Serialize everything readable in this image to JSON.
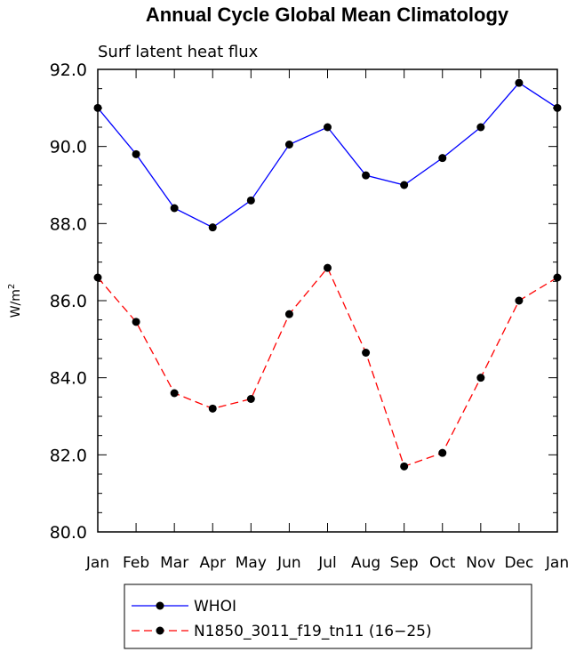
{
  "chart_data": {
    "type": "line",
    "title": "Annual Cycle Global Mean Climatology",
    "subtitle": "Surf latent heat flux",
    "xlabel": "",
    "ylabel": "W/m",
    "ylabel_superscript": "2",
    "categories": [
      "Jan",
      "Feb",
      "Mar",
      "Apr",
      "May",
      "Jun",
      "Jul",
      "Aug",
      "Sep",
      "Oct",
      "Nov",
      "Dec",
      "Jan"
    ],
    "ylim": [
      80.0,
      92.0
    ],
    "yticks": [
      "80.0",
      "82.0",
      "84.0",
      "86.0",
      "88.0",
      "90.0",
      "92.0"
    ],
    "series": [
      {
        "name": "WHOI",
        "color": "#0000ff",
        "dash": "solid",
        "values": [
          91.0,
          89.8,
          88.4,
          87.9,
          88.6,
          90.05,
          90.5,
          89.25,
          89.0,
          89.7,
          90.5,
          91.65,
          91.0
        ]
      },
      {
        "name": "N1850_3011_f19_tn11 (16−25)",
        "color": "#ff0000",
        "dash": "dashed",
        "values": [
          86.6,
          85.45,
          83.6,
          83.2,
          83.45,
          85.65,
          86.85,
          84.65,
          81.7,
          82.05,
          84.0,
          86.0,
          86.6
        ]
      }
    ],
    "legend_placement": "bottom"
  }
}
